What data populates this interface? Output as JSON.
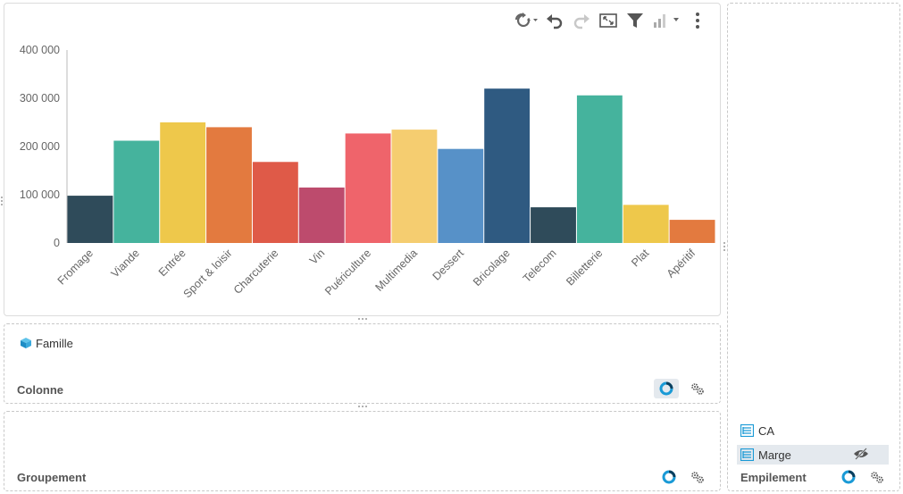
{
  "toolbar": {
    "icons": [
      "refresh-icon",
      "undo-icon",
      "redo-icon",
      "fullscreen-icon",
      "filter-icon",
      "chart-type-icon",
      "more-icon"
    ]
  },
  "chart_data": {
    "type": "bar",
    "title": "",
    "xlabel": "",
    "ylabel": "",
    "ylim": [
      0,
      400000
    ],
    "yticks": [
      "0",
      "100 000",
      "200 000",
      "300 000",
      "400 000"
    ],
    "ytick_values": [
      0,
      100000,
      200000,
      300000,
      400000
    ],
    "categories": [
      "Fromage",
      "Viande",
      "Entrée",
      "Sport & loisir",
      "Charcuterie",
      "Vin",
      "Puériculture",
      "Multimedia",
      "Dessert",
      "Bricolage",
      "Telecom",
      "Billetterie",
      "Plat",
      "Apéritif"
    ],
    "values": [
      98000,
      212000,
      250000,
      240000,
      168000,
      115000,
      227000,
      235000,
      195000,
      320000,
      74000,
      306000,
      79000,
      48000
    ],
    "colors": [
      "#2f4b5a",
      "#45b39d",
      "#eec84b",
      "#e37a3f",
      "#df5a48",
      "#bd4b6d",
      "#ef646b",
      "#f5cd70",
      "#5791c8",
      "#2f5a81",
      "#2f4b5a",
      "#45b39d",
      "#eec84b",
      "#e37a3f"
    ],
    "grid": false,
    "legend": "none"
  },
  "colonne": {
    "field": "Famille",
    "label": "Colonne"
  },
  "groupement": {
    "label": "Groupement"
  },
  "empilement": {
    "measures": [
      "CA",
      "Marge"
    ],
    "label": "Empilement"
  }
}
